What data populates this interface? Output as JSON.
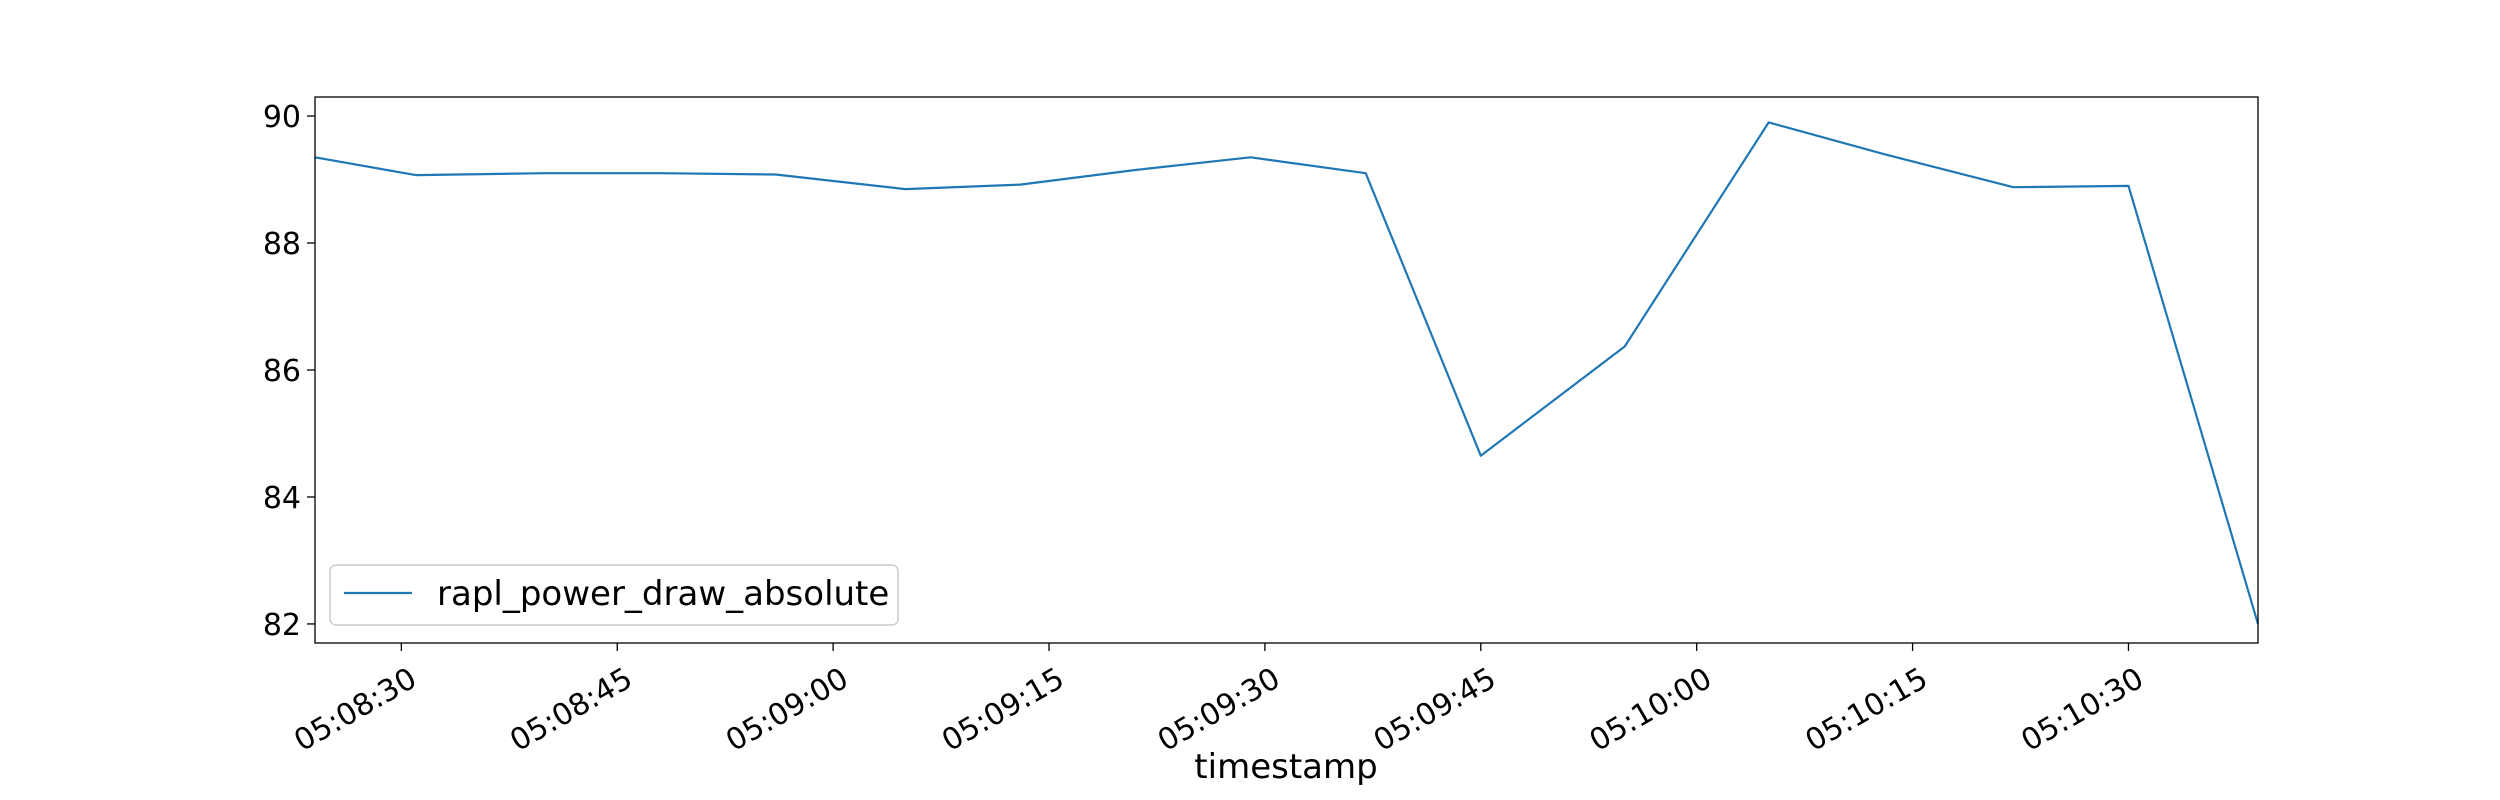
{
  "chart_data": {
    "type": "line",
    "title": "",
    "xlabel": "timestamp",
    "ylabel": "",
    "xlim": [
      "05:08:24",
      "05:10:39"
    ],
    "ylim": [
      81.7,
      90.3
    ],
    "grid": false,
    "legend_position": "lower-left",
    "x_ticks": [
      "05:08:30",
      "05:08:45",
      "05:09:00",
      "05:09:15",
      "05:09:30",
      "05:09:45",
      "05:10:00",
      "05:10:15",
      "05:10:30"
    ],
    "y_ticks": [
      "82",
      "84",
      "86",
      "88",
      "90"
    ],
    "series": [
      {
        "name": "rapl_power_draw_absolute",
        "color": "#1f77b4",
        "x": [
          "05:08:24",
          "05:08:31",
          "05:08:40",
          "05:08:48",
          "05:08:56",
          "05:09:05",
          "05:09:13",
          "05:09:21",
          "05:09:29",
          "05:09:37",
          "05:09:45",
          "05:09:55",
          "05:10:05",
          "05:10:13",
          "05:10:22",
          "05:10:30",
          "05:10:39"
        ],
        "values": [
          89.35,
          89.07,
          89.1,
          89.1,
          89.08,
          88.85,
          88.92,
          89.15,
          89.35,
          89.1,
          84.65,
          86.37,
          89.9,
          89.4,
          88.88,
          88.9,
          82.0
        ]
      }
    ]
  }
}
